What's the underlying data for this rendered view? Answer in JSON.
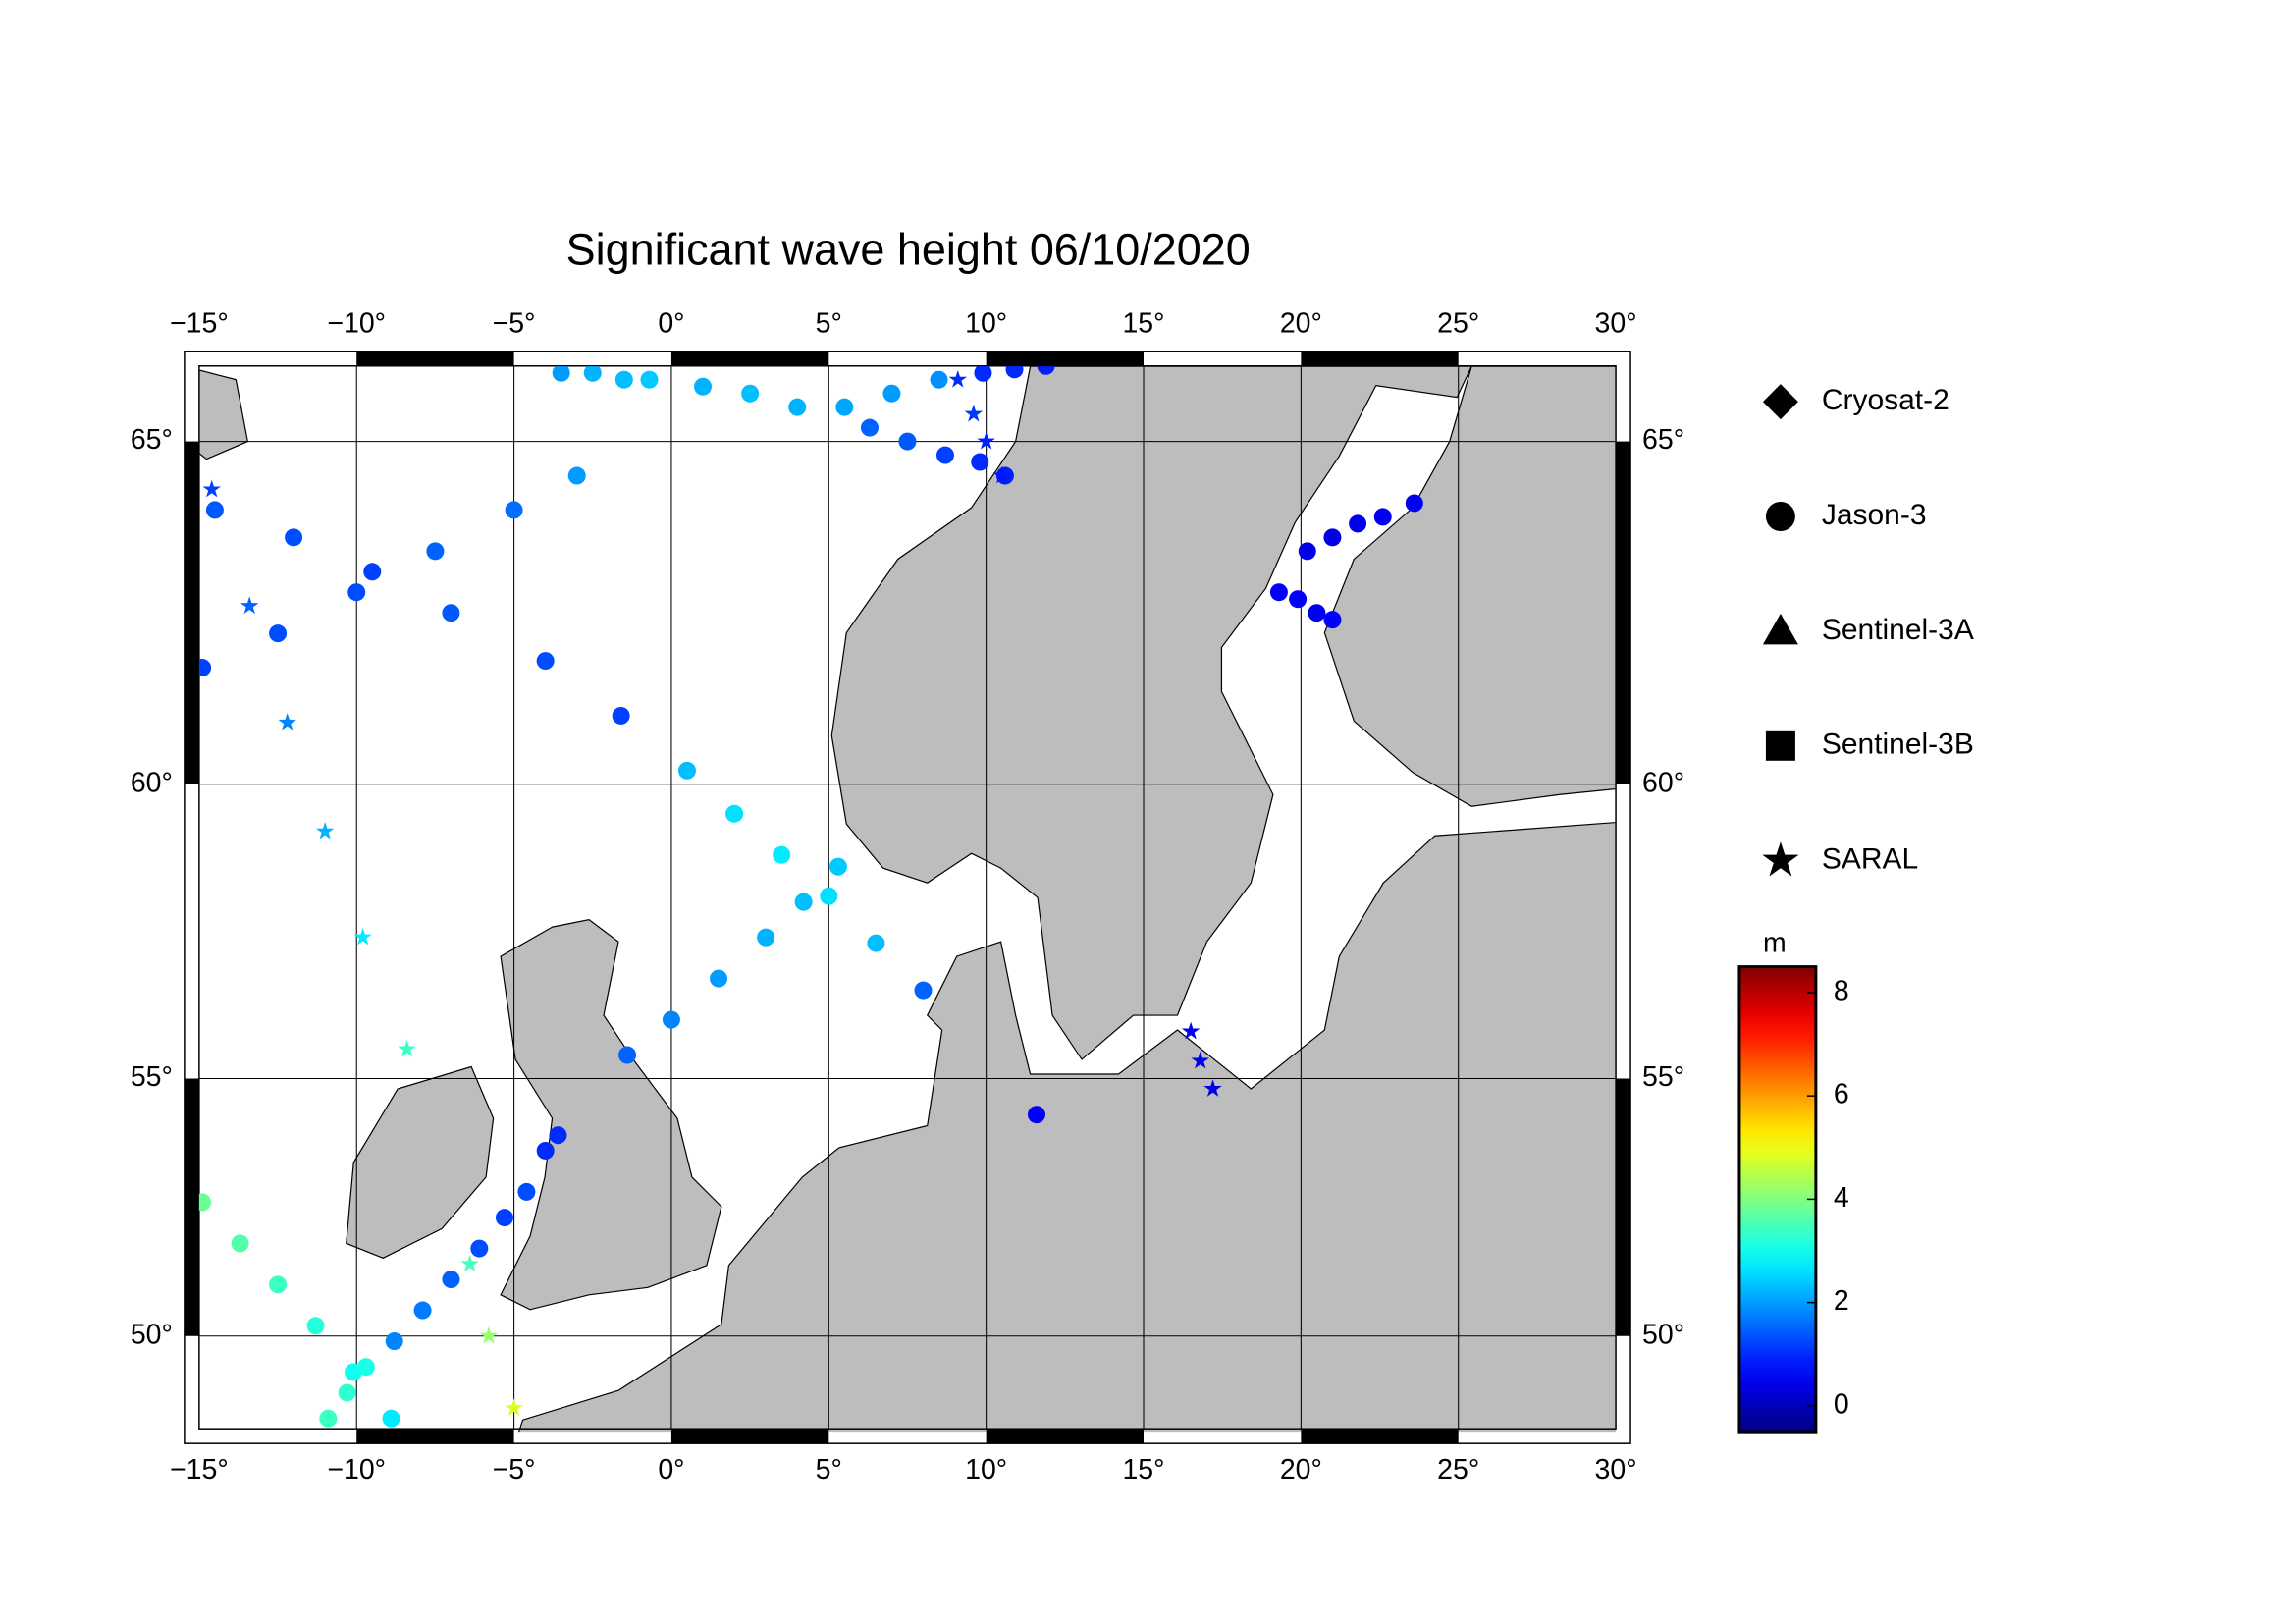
{
  "map": {
    "title": "Significant wave height 06/10/2020",
    "xlim": [
      -15,
      30
    ],
    "ylim": [
      48.2,
      66.1
    ],
    "xticks": [
      {
        "value": -15,
        "label": "−15°"
      },
      {
        "value": -10,
        "label": "−10°"
      },
      {
        "value": -5,
        "label": "−5°"
      },
      {
        "value": 0,
        "label": "0°"
      },
      {
        "value": 5,
        "label": "5°"
      },
      {
        "value": 10,
        "label": "10°"
      },
      {
        "value": 15,
        "label": "15°"
      },
      {
        "value": 20,
        "label": "20°"
      },
      {
        "value": 25,
        "label": "25°"
      },
      {
        "value": 30,
        "label": "30°"
      }
    ],
    "yticks": [
      {
        "value": 50,
        "label": "50°"
      },
      {
        "value": 55,
        "label": "55°"
      },
      {
        "value": 60,
        "label": "60°"
      },
      {
        "value": 65,
        "label": "65°"
      }
    ],
    "grid": true,
    "colorbar": {
      "unit": "m",
      "clim": [
        -0.5,
        8.5
      ],
      "ticks": [
        0,
        2,
        4,
        6,
        8
      ],
      "colormap": "jet"
    },
    "satellites": [
      {
        "name": "Cryosat-2",
        "marker": "diamond",
        "tracks": []
      },
      {
        "name": "Jason-3",
        "marker": "circle",
        "tracks": [
          {
            "lon": [
              -14.9,
              -12.5,
              -10,
              -7.5,
              -5,
              -3
            ],
            "lat": [
              61.7,
              62.2,
              62.8,
              63.4,
              64.0,
              64.5
            ],
            "swh": [
              1.2,
              1.3,
              1.3,
              1.5,
              1.6,
              2.0
            ]
          },
          {
            "lon": [
              -14.5,
              -12,
              -9.5,
              -7,
              -4,
              -1.6
            ],
            "lat": [
              64.0,
              63.6,
              63.1,
              62.5,
              61.8,
              61.0
            ],
            "swh": [
              1.4,
              1.3,
              1.2,
              1.4,
              1.3,
              1.2
            ]
          },
          {
            "lon": [
              0.5,
              2,
              3.5,
              5,
              6.5,
              8
            ],
            "lat": [
              60.2,
              59.5,
              58.8,
              58.1,
              57.3,
              56.5
            ],
            "swh": [
              2.3,
              2.6,
              2.7,
              2.6,
              2.3,
              1.5
            ]
          },
          {
            "lon": [
              -1.4,
              0,
              1.5,
              3,
              4.2,
              5.3
            ],
            "lat": [
              55.4,
              56.0,
              56.7,
              57.4,
              58.0,
              58.6
            ],
            "swh": [
              1.5,
              1.8,
              2.0,
              2.2,
              2.3,
              2.4
            ]
          },
          {
            "lon": [
              -8.8,
              -7.9,
              -7,
              -6.1,
              -5.3,
              -4.6
            ],
            "lat": [
              49.9,
              50.5,
              51.1,
              51.7,
              52.3,
              52.8
            ],
            "swh": [
              1.8,
              1.7,
              1.5,
              1.3,
              1.2,
              1.3
            ]
          },
          {
            "lon": [
              -4.0,
              -3.6
            ],
            "lat": [
              53.6,
              53.9
            ],
            "swh": [
              1.0,
              1.0
            ]
          },
          {
            "lon": [
              -3.5,
              -2.5,
              -1.5,
              -0.7
            ],
            "lat": [
              66.0,
              66.0,
              65.9,
              65.9
            ],
            "swh": [
              2.0,
              2.2,
              2.3,
              2.4
            ]
          },
          {
            "lon": [
              1,
              2.5,
              4,
              5.5,
              7,
              8.5
            ],
            "lat": [
              65.8,
              65.7,
              65.5,
              65.5,
              65.7,
              65.9
            ],
            "swh": [
              2.2,
              2.3,
              2.2,
              2.1,
              2.0,
              1.9
            ]
          },
          {
            "lon": [
              6.3,
              7.5,
              8.7,
              9.8,
              10.6
            ],
            "lat": [
              65.2,
              65.0,
              64.8,
              64.7,
              64.5
            ],
            "swh": [
              1.5,
              1.4,
              1.2,
              1.0,
              0.9
            ]
          },
          {
            "lon": [
              9.9,
              10.9,
              11.9
            ],
            "lat": [
              66.0,
              66.05,
              66.1
            ],
            "swh": [
              1.0,
              1.0,
              0.9
            ]
          },
          {
            "lon": [
              20.2,
              21.0,
              21.8,
              22.6,
              23.6
            ],
            "lat": [
              63.4,
              63.6,
              63.8,
              63.9,
              64.1
            ],
            "swh": [
              0.4,
              0.4,
              0.5,
              0.5,
              0.5
            ]
          },
          {
            "lon": [
              19.3,
              19.9,
              20.5,
              21.0
            ],
            "lat": [
              62.8,
              62.7,
              62.5,
              62.4
            ],
            "swh": [
              0.6,
              0.6,
              0.5,
              0.6
            ]
          },
          {
            "lon": [
              11.6
            ],
            "lat": [
              54.3
            ],
            "swh": [
              0.6
            ]
          },
          {
            "lon": [
              -14.9,
              -13.7,
              -12.5,
              -11.3,
              -10.1,
              -8.9
            ],
            "lat": [
              52.6,
              51.8,
              51.0,
              50.2,
              49.3,
              48.4
            ],
            "swh": [
              3.8,
              3.6,
              3.4,
              3.2,
              3.0,
              2.7
            ]
          },
          {
            "lon": [
              -10.9,
              -10.3,
              -9.7
            ],
            "lat": [
              48.4,
              48.9,
              49.4
            ],
            "swh": [
              3.4,
              3.3,
              3.1
            ]
          }
        ]
      },
      {
        "name": "Sentinel-3A",
        "marker": "triangle",
        "tracks": []
      },
      {
        "name": "Sentinel-3B",
        "marker": "square",
        "tracks": []
      },
      {
        "name": "SARAL",
        "marker": "star",
        "tracks": [
          {
            "lon": [
              -14.6,
              -13.4,
              -12.2,
              -11,
              -9.8,
              -8.4
            ],
            "lat": [
              64.3,
              62.6,
              60.9,
              59.2,
              57.4,
              55.5
            ],
            "swh": [
              1.2,
              1.5,
              1.8,
              2.2,
              2.7,
              3.4
            ]
          },
          {
            "lon": [
              -6.4,
              -5.8,
              -5.0
            ],
            "lat": [
              51.4,
              50.0,
              48.6
            ],
            "swh": [
              3.5,
              4.2,
              4.8
            ]
          },
          {
            "lon": [
              16.5,
              16.8,
              17.2
            ],
            "lat": [
              55.8,
              55.3,
              54.8
            ],
            "swh": [
              0.5,
              0.5,
              0.4
            ]
          },
          {
            "lon": [
              9.1,
              9.6,
              10.0,
              10.5
            ],
            "lat": [
              65.9,
              65.4,
              65.0,
              64.5
            ],
            "swh": [
              1.0,
              1.1,
              0.9,
              0.8
            ]
          }
        ]
      }
    ]
  }
}
